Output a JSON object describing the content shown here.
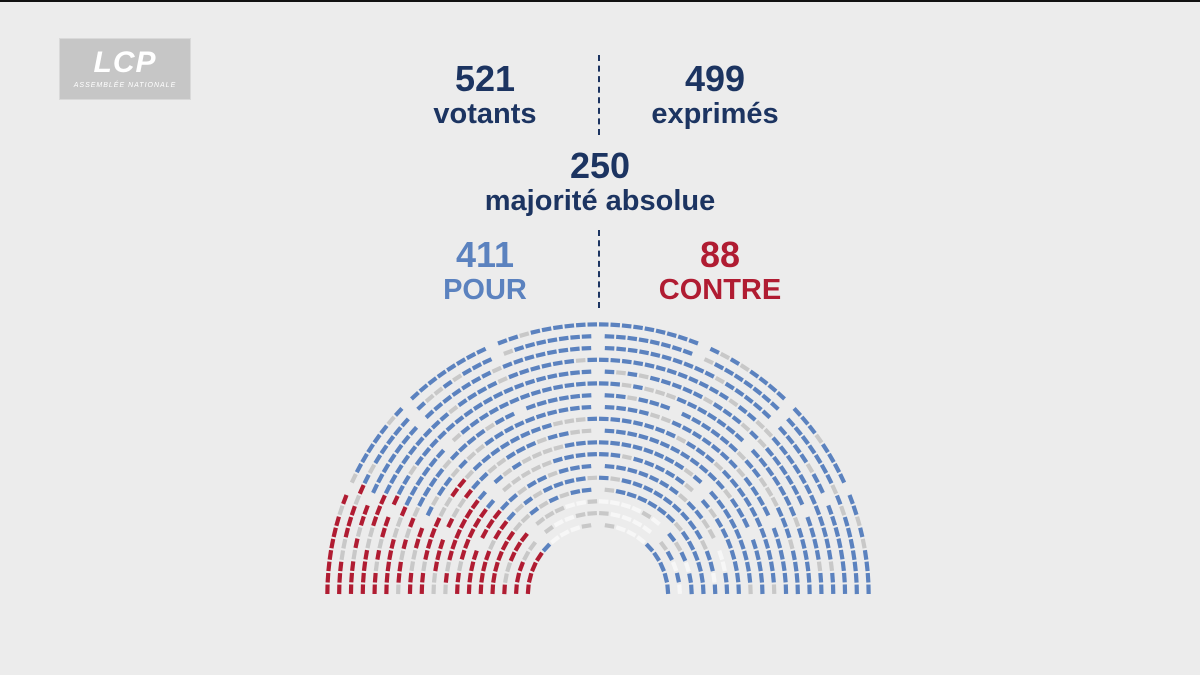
{
  "logo": {
    "main": "LCP",
    "sub": "ASSEMBLÉE NATIONALE"
  },
  "stats": {
    "votants": {
      "value": "521",
      "label": "votants"
    },
    "exprimes": {
      "value": "499",
      "label": "exprimés"
    },
    "majorite": {
      "value": "250",
      "label": "majorité absolue"
    },
    "pour": {
      "value": "411",
      "label": "POUR"
    },
    "contre": {
      "value": "88",
      "label": "CONTRE"
    }
  },
  "colors": {
    "title_navy": "#1c3461",
    "pour": "#5b82bf",
    "contre": "#b01c32",
    "abstention": "#c8c8c8",
    "absent": "#f7f7f7",
    "background": "#ececec"
  }
}
